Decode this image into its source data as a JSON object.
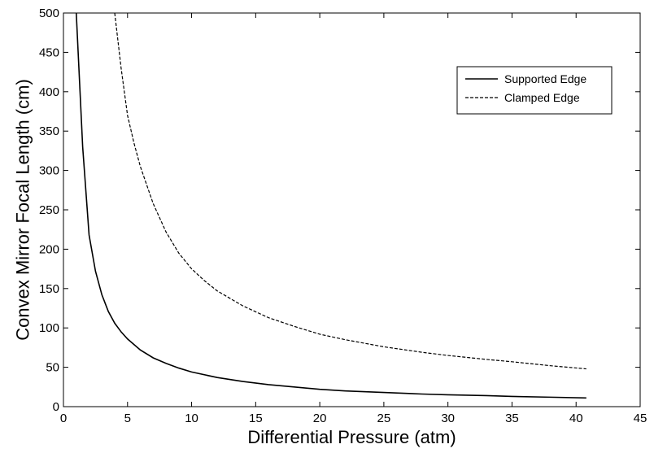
{
  "chart_data": {
    "type": "line",
    "title": "",
    "xlabel": "Differential Pressure (atm)",
    "ylabel": "Convex Mirror Focal Length (cm)",
    "xlim": [
      0,
      45
    ],
    "ylim": [
      0,
      500
    ],
    "xticks": [
      0,
      5,
      10,
      15,
      20,
      25,
      30,
      35,
      40,
      45
    ],
    "yticks": [
      0,
      50,
      100,
      150,
      200,
      250,
      300,
      350,
      400,
      450,
      500
    ],
    "grid": false,
    "legend_position": "top-right",
    "series": [
      {
        "name": "Supported Edge",
        "line_style": "solid",
        "color": "#000000",
        "x": [
          1,
          1.5,
          2,
          2.5,
          3,
          3.5,
          4,
          4.5,
          5,
          6,
          7,
          8,
          9,
          10,
          12,
          14,
          16,
          18,
          20,
          22,
          25,
          28,
          30,
          33,
          35,
          38,
          40.8
        ],
        "y": [
          500,
          330,
          218,
          172,
          142,
          121,
          106,
          95,
          86,
          72,
          62,
          55,
          49,
          44,
          37,
          32,
          28,
          25,
          22,
          20,
          18,
          16,
          15,
          14,
          13,
          12,
          11
        ]
      },
      {
        "name": "Clamped Edge",
        "line_style": "dashed",
        "color": "#000000",
        "x": [
          4,
          4.5,
          5,
          5.5,
          6,
          7,
          8,
          9,
          10,
          11,
          12,
          14,
          16,
          18,
          20,
          22,
          25,
          28,
          30,
          33,
          35,
          38,
          40.8
        ],
        "y": [
          500,
          430,
          370,
          335,
          305,
          258,
          222,
          195,
          175,
          160,
          147,
          128,
          113,
          102,
          92,
          85,
          76,
          69,
          65,
          60,
          57,
          52,
          48
        ]
      }
    ]
  }
}
